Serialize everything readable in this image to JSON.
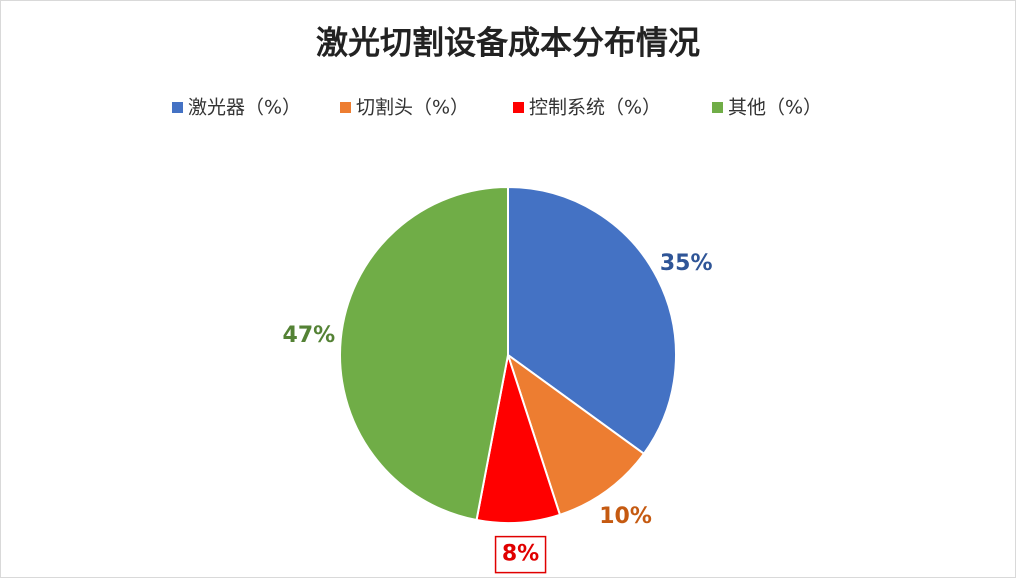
{
  "chart_data": {
    "type": "pie",
    "title": "激光切割设备成本分布情况",
    "categories": [
      "激光器（%）",
      "切割头（%）",
      "控制系统（%）",
      "其他（%）"
    ],
    "values": [
      35,
      10,
      8,
      47
    ],
    "value_labels": [
      "35%",
      "10%",
      "8%",
      "47%"
    ],
    "colors": [
      "#4472c4",
      "#ed7d31",
      "#ff0000",
      "#70ad47"
    ],
    "label_colors": [
      "#2f5597",
      "#c55a11",
      "#e00000",
      "#548235"
    ],
    "legend": "top"
  }
}
